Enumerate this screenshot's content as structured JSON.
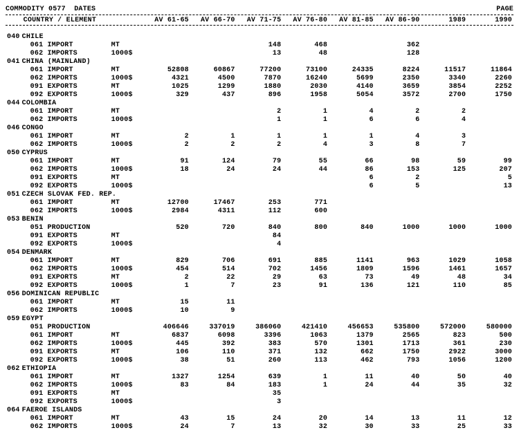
{
  "header": {
    "title_left": "COMMODITY 0577  DATES",
    "title_right": "PAGE",
    "col_country": "COUNTRY / ELEMENT",
    "cols": [
      "AV 61-65",
      "AV 66-70",
      "AV 71-75",
      "AV 76-80",
      "AV 81-85",
      "AV 86-90",
      "1989",
      "1990"
    ]
  },
  "countries": [
    {
      "code": "040",
      "name": "CHILE",
      "rows": [
        {
          "code": "061",
          "label": "IMPORT",
          "unit": "MT",
          "v": [
            "",
            "",
            "148",
            "468",
            "",
            "362",
            "",
            ""
          ]
        },
        {
          "code": "062",
          "label": "IMPORTS",
          "unit": "1000$",
          "v": [
            "",
            "",
            "13",
            "48",
            "",
            "128",
            "",
            ""
          ]
        }
      ]
    },
    {
      "code": "041",
      "name": "CHINA (MAINLAND)",
      "rows": [
        {
          "code": "061",
          "label": "IMPORT",
          "unit": "MT",
          "v": [
            "52808",
            "60867",
            "77200",
            "73100",
            "24335",
            "8224",
            "11517",
            "11864"
          ]
        },
        {
          "code": "062",
          "label": "IMPORTS",
          "unit": "1000$",
          "v": [
            "4321",
            "4500",
            "7870",
            "16240",
            "5699",
            "2350",
            "3340",
            "2260"
          ]
        },
        {
          "code": "091",
          "label": "EXPORTS",
          "unit": "MT",
          "v": [
            "1025",
            "1299",
            "1880",
            "2030",
            "4140",
            "3659",
            "3854",
            "2252"
          ]
        },
        {
          "code": "092",
          "label": "EXPORTS",
          "unit": "1000$",
          "v": [
            "329",
            "437",
            "896",
            "1958",
            "5054",
            "3572",
            "2700",
            "1750"
          ]
        }
      ]
    },
    {
      "code": "044",
      "name": "COLOMBIA",
      "rows": [
        {
          "code": "061",
          "label": "IMPORT",
          "unit": "MT",
          "v": [
            "",
            "",
            "2",
            "1",
            "4",
            "2",
            "2",
            ""
          ]
        },
        {
          "code": "062",
          "label": "IMPORTS",
          "unit": "1000$",
          "v": [
            "",
            "",
            "1",
            "1",
            "6",
            "6",
            "4",
            ""
          ]
        }
      ]
    },
    {
      "code": "046",
      "name": "CONGO",
      "rows": [
        {
          "code": "061",
          "label": "IMPORT",
          "unit": "MT",
          "v": [
            "2",
            "1",
            "1",
            "1",
            "1",
            "4",
            "3",
            ""
          ]
        },
        {
          "code": "062",
          "label": "IMPORTS",
          "unit": "1000$",
          "v": [
            "2",
            "2",
            "2",
            "4",
            "3",
            "8",
            "7",
            ""
          ]
        }
      ]
    },
    {
      "code": "050",
      "name": "CYPRUS",
      "rows": [
        {
          "code": "061",
          "label": "IMPORT",
          "unit": "MT",
          "v": [
            "91",
            "124",
            "79",
            "55",
            "66",
            "98",
            "59",
            "99"
          ]
        },
        {
          "code": "062",
          "label": "IMPORTS",
          "unit": "1000$",
          "v": [
            "18",
            "24",
            "24",
            "44",
            "86",
            "153",
            "125",
            "207"
          ]
        },
        {
          "code": "091",
          "label": "EXPORTS",
          "unit": "MT",
          "v": [
            "",
            "",
            "",
            "",
            "6",
            "2",
            "",
            "5"
          ]
        },
        {
          "code": "092",
          "label": "EXPORTS",
          "unit": "1000$",
          "v": [
            "",
            "",
            "",
            "",
            "6",
            "5",
            "",
            "13"
          ]
        }
      ]
    },
    {
      "code": "051",
      "name": "CZECH SLOVAK FED. REP.",
      "rows": [
        {
          "code": "061",
          "label": "IMPORT",
          "unit": "MT",
          "v": [
            "12700",
            "17467",
            "253",
            "771",
            "",
            "",
            "",
            ""
          ]
        },
        {
          "code": "062",
          "label": "IMPORTS",
          "unit": "1000$",
          "v": [
            "2984",
            "4311",
            "112",
            "600",
            "",
            "",
            "",
            ""
          ]
        }
      ]
    },
    {
      "code": "053",
      "name": "BENIN",
      "rows": [
        {
          "code": "051",
          "label": "PRODUCTION",
          "unit": "",
          "v": [
            "520",
            "720",
            "840",
            "800",
            "840",
            "1000",
            "1000",
            "1000"
          ]
        },
        {
          "code": "091",
          "label": "EXPORTS",
          "unit": "MT",
          "v": [
            "",
            "",
            "84",
            "",
            "",
            "",
            "",
            ""
          ]
        },
        {
          "code": "092",
          "label": "EXPORTS",
          "unit": "1000$",
          "v": [
            "",
            "",
            "4",
            "",
            "",
            "",
            "",
            ""
          ]
        }
      ]
    },
    {
      "code": "054",
      "name": "DENMARK",
      "rows": [
        {
          "code": "061",
          "label": "IMPORT",
          "unit": "MT",
          "v": [
            "829",
            "706",
            "691",
            "885",
            "1141",
            "963",
            "1029",
            "1058"
          ]
        },
        {
          "code": "062",
          "label": "IMPORTS",
          "unit": "1000$",
          "v": [
            "454",
            "514",
            "702",
            "1456",
            "1809",
            "1596",
            "1461",
            "1657"
          ]
        },
        {
          "code": "091",
          "label": "EXPORTS",
          "unit": "MT",
          "v": [
            "2",
            "22",
            "29",
            "63",
            "73",
            "49",
            "48",
            "34"
          ]
        },
        {
          "code": "092",
          "label": "EXPORTS",
          "unit": "1000$",
          "v": [
            "1",
            "7",
            "23",
            "91",
            "136",
            "121",
            "110",
            "85"
          ]
        }
      ]
    },
    {
      "code": "056",
      "name": "DOMINICAN REPUBLIC",
      "rows": [
        {
          "code": "061",
          "label": "IMPORT",
          "unit": "MT",
          "v": [
            "15",
            "11",
            "",
            "",
            "",
            "",
            "",
            ""
          ]
        },
        {
          "code": "062",
          "label": "IMPORTS",
          "unit": "1000$",
          "v": [
            "10",
            "9",
            "",
            "",
            "",
            "",
            "",
            ""
          ]
        }
      ]
    },
    {
      "code": "059",
      "name": "EGYPT",
      "rows": [
        {
          "code": "051",
          "label": "PRODUCTION",
          "unit": "",
          "v": [
            "406646",
            "337019",
            "386060",
            "421410",
            "456653",
            "535800",
            "572000",
            "580000"
          ]
        },
        {
          "code": "061",
          "label": "IMPORT",
          "unit": "MT",
          "v": [
            "6837",
            "6098",
            "3396",
            "1063",
            "1379",
            "2565",
            "823",
            "500"
          ]
        },
        {
          "code": "062",
          "label": "IMPORTS",
          "unit": "1000$",
          "v": [
            "445",
            "392",
            "383",
            "570",
            "1301",
            "1713",
            "361",
            "230"
          ]
        },
        {
          "code": "091",
          "label": "EXPORTS",
          "unit": "MT",
          "v": [
            "106",
            "110",
            "371",
            "132",
            "662",
            "1750",
            "2922",
            "3000"
          ]
        },
        {
          "code": "092",
          "label": "EXPORTS",
          "unit": "1000$",
          "v": [
            "38",
            "51",
            "260",
            "113",
            "462",
            "793",
            "1056",
            "1200"
          ]
        }
      ]
    },
    {
      "code": "062",
      "name": "ETHIOPIA",
      "rows": [
        {
          "code": "061",
          "label": "IMPORT",
          "unit": "MT",
          "v": [
            "1327",
            "1254",
            "639",
            "1",
            "11",
            "40",
            "50",
            "40"
          ]
        },
        {
          "code": "062",
          "label": "IMPORTS",
          "unit": "1000$",
          "v": [
            "83",
            "84",
            "183",
            "1",
            "24",
            "44",
            "35",
            "32"
          ]
        },
        {
          "code": "091",
          "label": "EXPORTS",
          "unit": "MT",
          "v": [
            "",
            "",
            "35",
            "",
            "",
            "",
            "",
            ""
          ]
        },
        {
          "code": "092",
          "label": "EXPORTS",
          "unit": "1000$",
          "v": [
            "",
            "",
            "3",
            "",
            "",
            "",
            "",
            ""
          ]
        }
      ]
    },
    {
      "code": "064",
      "name": "FAEROE ISLANDS",
      "rows": [
        {
          "code": "061",
          "label": "IMPORT",
          "unit": "MT",
          "v": [
            "43",
            "15",
            "24",
            "20",
            "14",
            "13",
            "11",
            "12"
          ]
        },
        {
          "code": "062",
          "label": "IMPORTS",
          "unit": "1000$",
          "v": [
            "24",
            "7",
            "13",
            "32",
            "30",
            "33",
            "25",
            "33"
          ]
        }
      ]
    }
  ]
}
